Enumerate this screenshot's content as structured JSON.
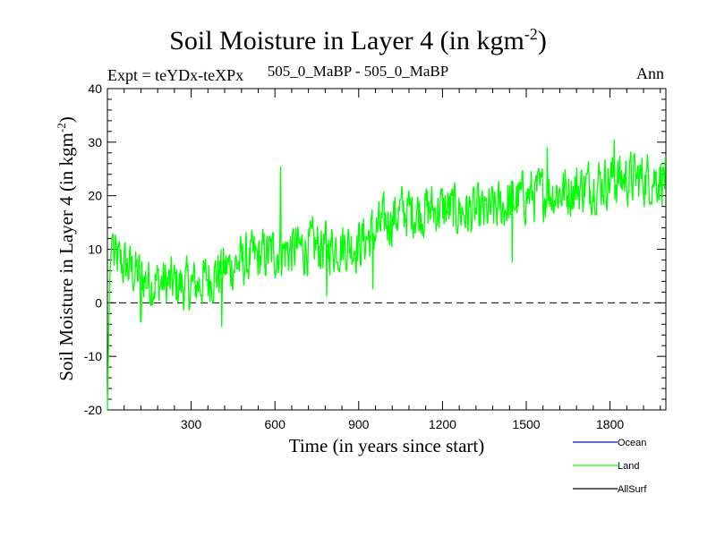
{
  "chart_data": {
    "type": "line",
    "title": "Soil Moisture in Layer 4 (in kgm",
    "title_sup": "-2",
    "title_close": ")",
    "expt_label": "Expt = teYDx-teXPx",
    "subtitle": "505_0_MaBP - 505_0_MaBP",
    "period": "Ann",
    "xlabel": "Time (in years since start)",
    "ylabel": "Soil Moisture in Layer 4 (in kgm",
    "ylabel_sup": "-2",
    "ylabel_close": ")",
    "xlim": [
      0,
      2000
    ],
    "ylim": [
      -20,
      40
    ],
    "x_ticks": [
      300,
      600,
      900,
      1200,
      1500,
      1800
    ],
    "x_tick_labels": [
      "300",
      "600",
      "900",
      "1200",
      "1500",
      "1800"
    ],
    "y_ticks": [
      -20,
      -10,
      0,
      10,
      20,
      30,
      40
    ],
    "y_tick_labels": [
      "-20",
      "-10",
      "0",
      "10",
      "20",
      "30",
      "40"
    ],
    "reference_line": 0,
    "series": [
      {
        "name": "Land",
        "color": "#00ff00",
        "generated": true,
        "spinup": [
          [
            0,
            -20
          ],
          [
            2,
            -14
          ],
          [
            4,
            -8
          ],
          [
            6,
            -2
          ],
          [
            8,
            4
          ],
          [
            12,
            8
          ],
          [
            16,
            12
          ],
          [
            20,
            13
          ]
        ],
        "trend_x": [
          0,
          150,
          300,
          450,
          600,
          750,
          900,
          1050,
          1200,
          1350,
          1500,
          1650,
          1800,
          2000
        ],
        "trend_y": [
          9,
          4,
          3,
          7,
          9.5,
          10.5,
          11,
          17,
          17.5,
          16.5,
          20,
          21,
          23,
          23.5
        ],
        "noise_amplitude": 3.2,
        "spikes": [
          [
            620,
            25.5
          ],
          [
            785,
            1.2
          ],
          [
            950,
            2.5
          ],
          [
            1450,
            7.5
          ],
          [
            1575,
            29
          ],
          [
            1815,
            30.5
          ],
          [
            410,
            -4.5
          ],
          [
            120,
            -3.5
          ]
        ]
      },
      {
        "name": "Ocean",
        "color": "#0000ff",
        "values": []
      },
      {
        "name": "AllSurf",
        "color": "#000000",
        "values": []
      }
    ],
    "legend": [
      {
        "label": "Ocean",
        "color": "#0000ff"
      },
      {
        "label": "Land",
        "color": "#00ff00"
      },
      {
        "label": "AllSurf",
        "color": "#000000"
      }
    ]
  }
}
